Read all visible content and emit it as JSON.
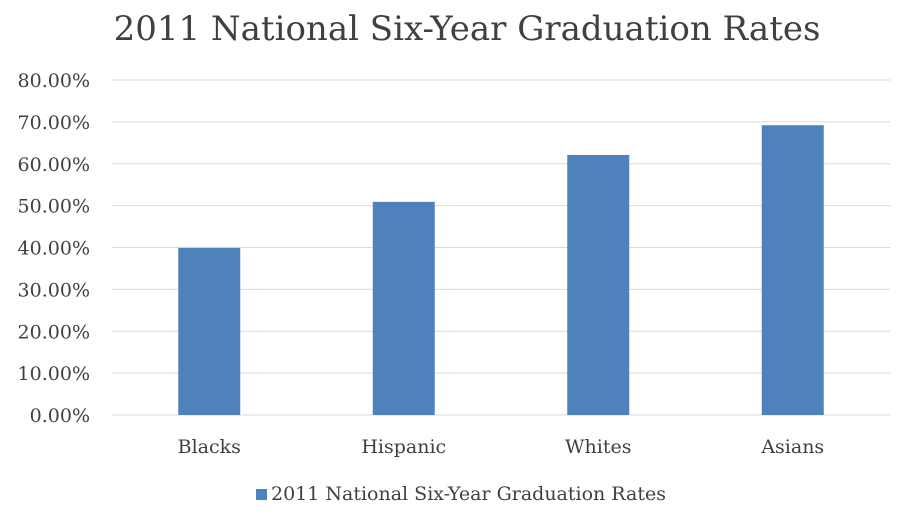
{
  "chart_data": {
    "type": "bar",
    "title": "2011 National Six-Year Graduation Rates",
    "categories": [
      "Blacks",
      "Hispanic",
      "Whites",
      "Asians"
    ],
    "series": [
      {
        "name": "2011 National Six-Year Graduation Rates",
        "values": [
          0.399,
          0.509,
          0.621,
          0.692
        ]
      }
    ],
    "ylim": [
      0,
      0.8
    ],
    "yticks": [
      "0.00%",
      "10.00%",
      "20.00%",
      "30.00%",
      "40.00%",
      "50.00%",
      "60.00%",
      "70.00%",
      "80.00%"
    ],
    "grid": true,
    "legend_position": "bottom",
    "bar_color": "#4F81BD",
    "grid_color": "#D9D9D9"
  }
}
